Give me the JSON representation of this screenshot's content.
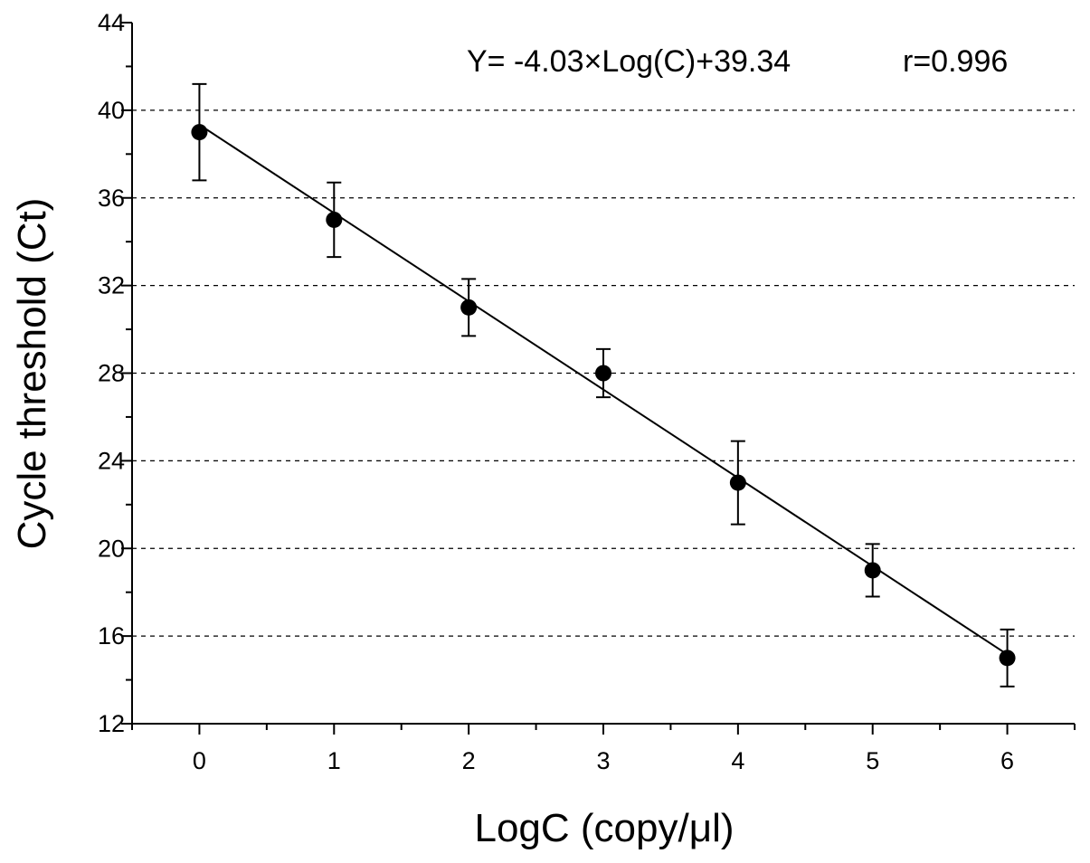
{
  "chart_data": {
    "type": "scatter",
    "title": "",
    "xlabel": "LogC (copy/μl)",
    "ylabel": "Cycle threshold   (Ct)",
    "xlim": [
      -0.5,
      6.5
    ],
    "ylim": [
      12,
      44
    ],
    "x_ticks": [
      0,
      1,
      2,
      3,
      4,
      5,
      6
    ],
    "y_ticks": [
      12,
      16,
      20,
      24,
      28,
      32,
      36,
      40,
      44
    ],
    "grid": "horizontal dashed",
    "points": [
      {
        "x": 0,
        "y": 39.0,
        "err": 2.2
      },
      {
        "x": 1,
        "y": 35.0,
        "err": 1.7
      },
      {
        "x": 2,
        "y": 31.0,
        "err": 1.3
      },
      {
        "x": 3,
        "y": 28.0,
        "err": 1.1
      },
      {
        "x": 4,
        "y": 23.0,
        "err": 1.9
      },
      {
        "x": 5,
        "y": 19.0,
        "err": 1.2
      },
      {
        "x": 6,
        "y": 15.0,
        "err": 1.3
      }
    ],
    "fit_line": {
      "slope": -4.03,
      "intercept": 39.34,
      "x_range": [
        0,
        6
      ]
    },
    "annotations": {
      "equation": "Y= -4.03×Log(C)+39.34",
      "r": "r=0.996"
    },
    "colors": {
      "marker": "#000000",
      "line": "#000000",
      "grid": "#000000"
    }
  }
}
